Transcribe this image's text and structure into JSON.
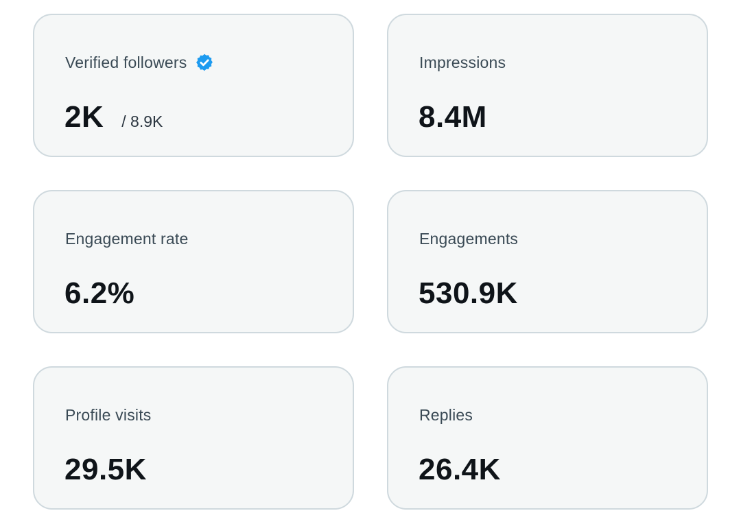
{
  "stats": [
    {
      "label": "Verified followers",
      "value": "2K",
      "subvalue": "/ 8.9K",
      "icon": "verified-badge-icon",
      "icon_color": "#1d9bf0"
    },
    {
      "label": "Impressions",
      "value": "8.4M"
    },
    {
      "label": "Engagement rate",
      "value": "6.2%"
    },
    {
      "label": "Engagements",
      "value": "530.9K"
    },
    {
      "label": "Profile visits",
      "value": "29.5K"
    },
    {
      "label": "Replies",
      "value": "26.4K"
    }
  ]
}
